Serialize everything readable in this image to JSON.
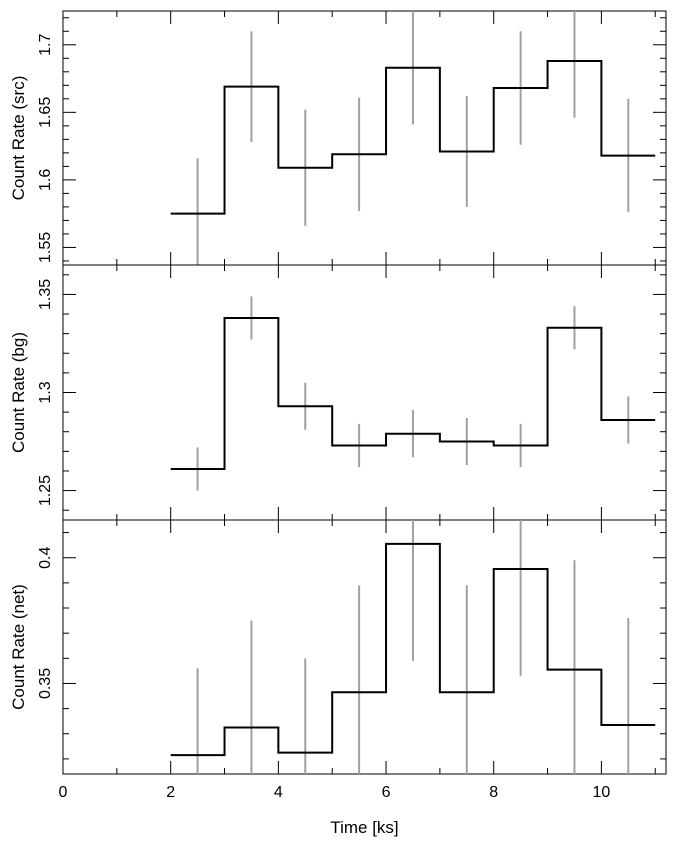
{
  "chart_data": [
    {
      "type": "line",
      "style": "step-with-errorbars",
      "ylabel": "Count Rate (src)",
      "xlim": [
        0,
        11.2
      ],
      "ylim": [
        1.537,
        1.725
      ],
      "yticks": [
        "1.55",
        "1.6",
        "1.65",
        "1.7"
      ],
      "ytick_values": [
        1.55,
        1.6,
        1.65,
        1.7
      ],
      "bin_edges": [
        2,
        3,
        4,
        5,
        6,
        7,
        8,
        9,
        10,
        11
      ],
      "x": [
        2.5,
        3.5,
        4.5,
        5.5,
        6.5,
        7.5,
        8.5,
        9.5,
        10.5
      ],
      "y": [
        1.575,
        1.669,
        1.609,
        1.619,
        1.683,
        1.621,
        1.668,
        1.688,
        1.618
      ],
      "yerr": [
        0.041,
        0.041,
        0.043,
        0.042,
        0.042,
        0.041,
        0.042,
        0.042,
        0.042
      ],
      "line_color": "#000000",
      "errbar_color": "#a0a0a0"
    },
    {
      "type": "line",
      "style": "step-with-errorbars",
      "ylabel": "Count Rate (bg)",
      "xlim": [
        0,
        11.2
      ],
      "ylim": [
        1.235,
        1.365
      ],
      "yticks": [
        "1.25",
        "1.3",
        "1.35"
      ],
      "ytick_values": [
        1.25,
        1.3,
        1.35
      ],
      "bin_edges": [
        2,
        3,
        4,
        5,
        6,
        7,
        8,
        9,
        10,
        11
      ],
      "x": [
        2.5,
        3.5,
        4.5,
        5.5,
        6.5,
        7.5,
        8.5,
        9.5,
        10.5
      ],
      "y": [
        1.261,
        1.338,
        1.293,
        1.273,
        1.279,
        1.275,
        1.273,
        1.333,
        1.286
      ],
      "yerr": [
        0.011,
        0.011,
        0.012,
        0.011,
        0.012,
        0.012,
        0.011,
        0.011,
        0.012
      ],
      "line_color": "#000000",
      "errbar_color": "#a0a0a0"
    },
    {
      "type": "line",
      "style": "step-with-errorbars",
      "ylabel": "Count Rate (net)",
      "xlabel": "Time [ks]",
      "xlim": [
        0,
        11.2
      ],
      "xticks": [
        "0",
        "2",
        "4",
        "6",
        "8",
        "10"
      ],
      "xtick_values": [
        0,
        2,
        4,
        6,
        8,
        10
      ],
      "ylim": [
        0.314,
        0.415
      ],
      "yticks": [
        "0.35",
        "0.4"
      ],
      "ytick_values": [
        0.35,
        0.4
      ],
      "bin_edges": [
        2,
        3,
        4,
        5,
        6,
        7,
        8,
        9,
        10,
        11
      ],
      "x": [
        2.5,
        3.5,
        4.5,
        5.5,
        6.5,
        7.5,
        8.5,
        9.5,
        10.5
      ],
      "y": [
        0.3215,
        0.3325,
        0.3225,
        0.3465,
        0.4055,
        0.3465,
        0.3955,
        0.3555,
        0.3335
      ],
      "yerr": [
        0.0345,
        0.0425,
        0.0375,
        0.0425,
        0.0465,
        0.0425,
        0.0425,
        0.0435,
        0.0425
      ],
      "line_color": "#000000",
      "errbar_color": "#a0a0a0"
    }
  ]
}
